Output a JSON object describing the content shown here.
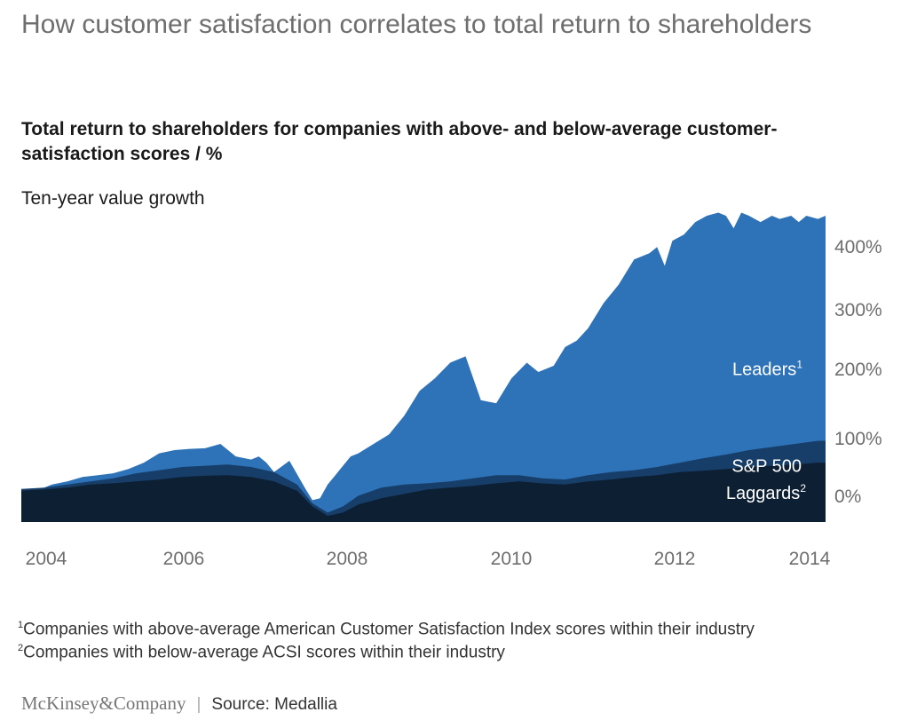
{
  "header": {
    "title": "How customer satisfaction correlates to total return to shareholders",
    "subtitle": "Total return to shareholders for companies with above- and below-average customer-satisfaction scores / %",
    "ylabel": "Ten-year value growth"
  },
  "footnotes": {
    "fn1_mark": "1",
    "fn1_text": "Companies with above-average American Customer Satisfaction Index scores within their industry",
    "fn2_mark": "2",
    "fn2_text": "Companies with below-average ACSI scores within their industry"
  },
  "footer": {
    "brand": "McKinsey&Company",
    "separator": "|",
    "source": "Source: Medallia"
  },
  "chart_data": {
    "type": "area",
    "title": "",
    "ylabel": "Ten-year value growth",
    "ylim": [
      -50,
      450
    ],
    "x_ticks": [
      "2004",
      "2006",
      "2008",
      "2010",
      "2012",
      "2014"
    ],
    "y_ticks": [
      "0%",
      "100%",
      "200%",
      "300%",
      "400%"
    ],
    "legend_placement": "inline-right",
    "series": [
      {
        "name": "Leaders",
        "label_mark": "1",
        "color": "#2e72b8",
        "x": [
          2003.7,
          2003.9,
          2004.1,
          2004.3,
          2004.5,
          2004.7,
          2004.9,
          2005.1,
          2005.3,
          2005.5,
          2005.7,
          2005.9,
          2006.1,
          2006.3,
          2006.5,
          2006.7,
          2006.8,
          2006.9,
          2007.0,
          2007.2,
          2007.4,
          2007.5,
          2007.6,
          2007.7,
          2007.8,
          2007.9,
          2008.0,
          2008.1,
          2008.3,
          2008.5,
          2008.7,
          2008.9,
          2009.1,
          2009.3,
          2009.5,
          2009.7,
          2009.9,
          2010.1,
          2010.3,
          2010.45,
          2010.55,
          2010.65,
          2010.8,
          2010.95,
          2011.1,
          2011.3,
          2011.5,
          2011.7,
          2011.9,
          2012.0,
          2012.1,
          2012.2,
          2012.35,
          2012.5,
          2012.65,
          2012.8,
          2012.9,
          2013.0,
          2013.1,
          2013.2,
          2013.35,
          2013.5,
          2013.6,
          2013.75,
          2013.85,
          2013.95,
          2014.1,
          2014.2
        ],
        "values": [
          3,
          0,
          10,
          15,
          22,
          25,
          28,
          35,
          45,
          60,
          65,
          67,
          68,
          75,
          55,
          50,
          55,
          45,
          30,
          48,
          5,
          -15,
          -12,
          10,
          25,
          40,
          55,
          60,
          75,
          90,
          120,
          160,
          180,
          205,
          215,
          145,
          140,
          180,
          205,
          190,
          195,
          200,
          230,
          240,
          260,
          300,
          330,
          370,
          380,
          390,
          360,
          400,
          410,
          430,
          440,
          445,
          440,
          420,
          445,
          440,
          430,
          440,
          435,
          440,
          430,
          440,
          435,
          440
        ],
        "_note_values_truncated": false
      },
      {
        "name": "S&P 500",
        "color": "#173e68",
        "x": [
          2003.7,
          2004.0,
          2004.3,
          2004.6,
          2004.9,
          2005.2,
          2005.5,
          2005.8,
          2006.1,
          2006.4,
          2006.7,
          2007.0,
          2007.3,
          2007.5,
          2007.7,
          2007.9,
          2008.1,
          2008.4,
          2008.7,
          2009.0,
          2009.3,
          2009.6,
          2009.9,
          2010.2,
          2010.5,
          2010.8,
          2011.1,
          2011.4,
          2011.7,
          2012.0,
          2012.3,
          2012.6,
          2012.9,
          2013.2,
          2013.5,
          2013.8,
          2014.1,
          2014.2
        ],
        "values": [
          3,
          5,
          10,
          15,
          20,
          28,
          33,
          38,
          40,
          42,
          38,
          30,
          10,
          -20,
          -35,
          -25,
          -8,
          5,
          10,
          12,
          15,
          20,
          25,
          25,
          20,
          18,
          25,
          30,
          33,
          38,
          45,
          52,
          58,
          65,
          70,
          75,
          80,
          80
        ]
      },
      {
        "name": "Laggards",
        "label_mark": "2",
        "color": "#0d1f33",
        "x": [
          2003.7,
          2004.0,
          2004.3,
          2004.6,
          2004.9,
          2005.2,
          2005.5,
          2005.8,
          2006.1,
          2006.4,
          2006.7,
          2007.0,
          2007.3,
          2007.5,
          2007.7,
          2007.9,
          2008.1,
          2008.4,
          2008.7,
          2009.0,
          2009.3,
          2009.6,
          2009.9,
          2010.2,
          2010.5,
          2010.8,
          2011.1,
          2011.4,
          2011.7,
          2012.0,
          2012.3,
          2012.6,
          2012.9,
          2013.2,
          2013.5,
          2013.8,
          2014.1,
          2014.2
        ],
        "values": [
          0,
          2,
          5,
          10,
          12,
          15,
          18,
          22,
          24,
          25,
          22,
          15,
          0,
          -25,
          -40,
          -35,
          -22,
          -12,
          -5,
          2,
          5,
          8,
          12,
          15,
          12,
          10,
          15,
          18,
          22,
          25,
          30,
          32,
          35,
          38,
          40,
          42,
          45,
          45
        ]
      }
    ]
  }
}
